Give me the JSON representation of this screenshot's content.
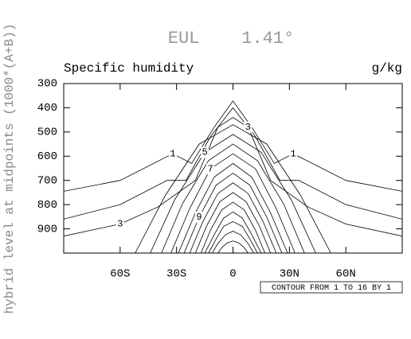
{
  "chart_data": {
    "type": "contour",
    "title": "EUL    1.41°",
    "left_subtitle": "Specific humidity",
    "right_subtitle": "g/kg",
    "y_label": "hybrid level at midpoints (1000*(A+B))",
    "info_label": "CONTOUR FROM 1 TO 16 BY 1",
    "xlim": [
      -90,
      90
    ],
    "ylim": [
      300,
      1000
    ],
    "y_reversed": true,
    "xticks": [
      {
        "value": -60,
        "label": "60S"
      },
      {
        "value": -30,
        "label": "30S"
      },
      0,
      {
        "value": 30,
        "label": "30N"
      },
      {
        "value": 60,
        "label": "60N"
      }
    ],
    "yticks": [
      300,
      400,
      500,
      600,
      700,
      800,
      900
    ],
    "color": "#000000",
    "contours": [
      {
        "level": 1,
        "x": [
          -90,
          -60,
          -32,
          -22,
          -10,
          0,
          10,
          22,
          32,
          60,
          90
        ],
        "y": [
          745,
          700,
          590,
          630,
          480,
          372,
          480,
          630,
          590,
          700,
          745
        ]
      },
      {
        "level": 2,
        "x": [
          -90,
          -60,
          -35,
          -25,
          -12,
          0,
          12,
          25,
          35,
          60,
          90
        ],
        "y": [
          860,
          800,
          700,
          700,
          520,
          400,
          520,
          700,
          700,
          800,
          860
        ]
      },
      {
        "level": 3,
        "x": [
          -90,
          -60,
          -40,
          -20,
          -8,
          0,
          8,
          20,
          40,
          60,
          90
        ],
        "y": [
          930,
          880,
          810,
          700,
          480,
          440,
          480,
          700,
          810,
          880,
          930
        ]
      },
      {
        "level": 4,
        "x": [
          -52,
          -36,
          -18,
          0,
          18,
          36,
          52
        ],
        "y": [
          1000,
          762,
          550,
          470,
          550,
          762,
          1000
        ]
      },
      {
        "level": 5,
        "x": [
          -44,
          -31,
          -15,
          0,
          15,
          31,
          44
        ],
        "y": [
          1000,
          780,
          584,
          510,
          584,
          780,
          1000
        ]
      },
      {
        "level": 6,
        "x": [
          -38,
          -27,
          -13,
          0,
          13,
          27,
          38
        ],
        "y": [
          1000,
          798,
          618,
          550,
          618,
          798,
          1000
        ]
      },
      {
        "level": 7,
        "x": [
          -33,
          -23,
          -12,
          0,
          12,
          23,
          33
        ],
        "y": [
          1000,
          816,
          652,
          590,
          652,
          816,
          1000
        ]
      },
      {
        "level": 8,
        "x": [
          -29,
          -20,
          -10,
          0,
          10,
          20,
          29
        ],
        "y": [
          1000,
          834,
          686,
          630,
          686,
          834,
          1000
        ]
      },
      {
        "level": 9,
        "x": [
          -26,
          -18,
          -9,
          0,
          9,
          18,
          26
        ],
        "y": [
          1000,
          852,
          720,
          670,
          720,
          852,
          1000
        ]
      },
      {
        "level": 10,
        "x": [
          -23,
          -16,
          -8,
          0,
          8,
          16,
          23
        ],
        "y": [
          1000,
          870,
          754,
          710,
          754,
          870,
          1000
        ]
      },
      {
        "level": 11,
        "x": [
          -20,
          -14,
          -7,
          0,
          7,
          14,
          20
        ],
        "y": [
          1000,
          888,
          788,
          750,
          788,
          888,
          1000
        ]
      },
      {
        "level": 12,
        "x": [
          -17,
          -12,
          -6,
          0,
          6,
          12,
          17
        ],
        "y": [
          1000,
          906,
          822,
          790,
          822,
          906,
          1000
        ]
      },
      {
        "level": 13,
        "x": [
          -15,
          -10,
          -5,
          0,
          5,
          10,
          15
        ],
        "y": [
          1000,
          924,
          856,
          830,
          856,
          924,
          1000
        ]
      },
      {
        "level": 14,
        "x": [
          -13,
          -9,
          -5,
          0,
          5,
          9,
          13
        ],
        "y": [
          1000,
          942,
          890,
          870,
          890,
          942,
          1000
        ]
      },
      {
        "level": 15,
        "x": [
          -11,
          -8,
          -4,
          0,
          4,
          8,
          11
        ],
        "y": [
          1000,
          960,
          924,
          910,
          924,
          960,
          1000
        ]
      },
      {
        "level": 16,
        "x": [
          -8,
          -6,
          -3,
          0,
          3,
          6,
          8
        ],
        "y": [
          1000,
          978,
          958,
          950,
          958,
          978,
          1000
        ]
      }
    ]
  }
}
